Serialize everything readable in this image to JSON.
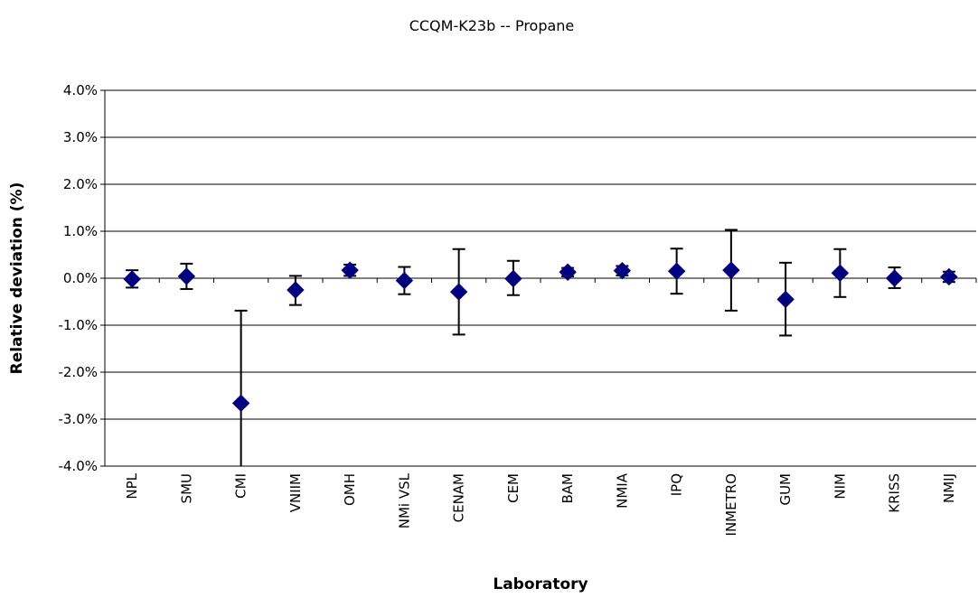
{
  "chart_data": {
    "type": "scatter",
    "title": "CCQM-K23b -- Propane",
    "xlabel": "Laboratory",
    "ylabel": "Relative deviation (%)",
    "ylim": [
      -4.0,
      4.0
    ],
    "yticks": [
      "4.0%",
      "3.0%",
      "2.0%",
      "1.0%",
      "0.0%",
      "-1.0%",
      "-2.0%",
      "-3.0%",
      "-4.0%"
    ],
    "grid": true,
    "legend": "none",
    "marker_color": "#000080",
    "categories": [
      "NPL",
      "SMU",
      "CMI",
      "VNIIM",
      "OMH",
      "NMi VSL",
      "CENAM",
      "CEM",
      "BAM",
      "NMIA",
      "IPQ",
      "INMETRO",
      "GUM",
      "NIM",
      "KRISS",
      "NMIJ"
    ],
    "series": [
      {
        "values": [
          -0.02,
          0.04,
          -2.66,
          -0.25,
          0.17,
          -0.05,
          -0.29,
          -0.01,
          0.13,
          0.16,
          0.15,
          0.17,
          -0.45,
          0.11,
          0.0,
          0.03
        ],
        "error_lower": [
          -0.2,
          -0.23,
          -4.0,
          -0.57,
          0.05,
          -0.34,
          -1.2,
          -0.36,
          0.04,
          0.06,
          -0.33,
          -0.69,
          -1.22,
          -0.4,
          -0.21,
          -0.08
        ],
        "error_upper": [
          0.17,
          0.31,
          -0.69,
          0.05,
          0.29,
          0.24,
          0.62,
          0.37,
          0.22,
          0.26,
          0.63,
          1.03,
          0.33,
          0.62,
          0.23,
          0.14
        ]
      }
    ]
  }
}
